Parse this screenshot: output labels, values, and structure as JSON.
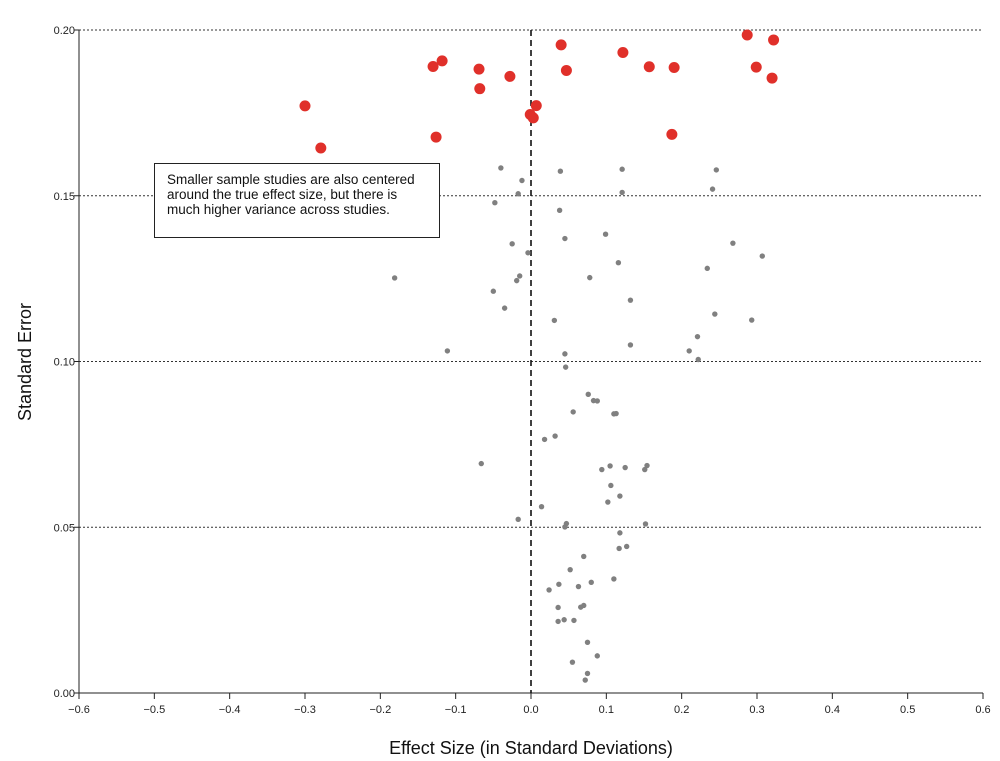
{
  "chart_data": {
    "type": "scatter",
    "xlabel": "Effect Size (in Standard Deviations)",
    "ylabel": "Standard Error",
    "xlim": [
      -0.6,
      0.6
    ],
    "ylim": [
      0,
      0.2
    ],
    "x_ticks": [
      "−0.6",
      "−0.5",
      "−0.4",
      "−0.3",
      "−0.2",
      "−0.1",
      "0.0",
      "0.1",
      "0.2",
      "0.3",
      "0.4",
      "0.5",
      "0.6"
    ],
    "y_ticks": [
      "0.00",
      "0.05",
      "0.10",
      "0.15",
      "0.20"
    ],
    "grid": "horizontal dotted at y ticks",
    "reference_line_x": 0,
    "annotation": "Smaller sample studies are also centered around the true effect size, but there is much higher variance across studies.",
    "colors": {
      "highlight": "#e0302a",
      "regular": "#808080",
      "grid": "#333333"
    },
    "series": [
      {
        "color": "#e0302a",
        "marker": "large",
        "points": [
          [
            0.04,
            0.1955
          ],
          [
            0.287,
            0.1985
          ],
          [
            0.322,
            0.197
          ],
          [
            0.122,
            0.1932
          ],
          [
            -0.118,
            0.1907
          ],
          [
            -0.13,
            0.189
          ],
          [
            -0.069,
            0.1882
          ],
          [
            -0.028,
            0.186
          ],
          [
            0.047,
            0.1878
          ],
          [
            0.157,
            0.1889
          ],
          [
            0.19,
            0.1887
          ],
          [
            0.299,
            0.1888
          ],
          [
            0.32,
            0.1855
          ],
          [
            -0.068,
            0.1823
          ],
          [
            -0.3,
            0.1771
          ],
          [
            0.007,
            0.1772
          ],
          [
            -0.001,
            0.1745
          ],
          [
            0.003,
            0.1735
          ],
          [
            -0.126,
            0.1677
          ],
          [
            -0.279,
            0.1644
          ],
          [
            0.187,
            0.1685
          ]
        ]
      },
      {
        "color": "#808080",
        "marker": "small",
        "points": [
          [
            -0.04,
            0.1584
          ],
          [
            0.039,
            0.1574
          ],
          [
            0.121,
            0.158
          ],
          [
            0.246,
            0.1578
          ],
          [
            -0.012,
            0.1546
          ],
          [
            -0.017,
            0.1506
          ],
          [
            0.121,
            0.151
          ],
          [
            0.241,
            0.152
          ],
          [
            -0.048,
            0.1479
          ],
          [
            0.038,
            0.1456
          ],
          [
            0.099,
            0.1384
          ],
          [
            0.045,
            0.1371
          ],
          [
            -0.025,
            0.1355
          ],
          [
            0.268,
            0.1357
          ],
          [
            -0.004,
            0.1328
          ],
          [
            0.307,
            0.1318
          ],
          [
            0.116,
            0.1298
          ],
          [
            0.234,
            0.1281
          ],
          [
            -0.015,
            0.1258
          ],
          [
            -0.019,
            0.1244
          ],
          [
            0.078,
            0.1253
          ],
          [
            -0.181,
            0.1252
          ],
          [
            -0.05,
            0.1212
          ],
          [
            0.132,
            0.1185
          ],
          [
            -0.035,
            0.1161
          ],
          [
            0.244,
            0.1143
          ],
          [
            0.031,
            0.1124
          ],
          [
            0.293,
            0.1125
          ],
          [
            0.221,
            0.1075
          ],
          [
            0.132,
            0.105
          ],
          [
            -0.111,
            0.1032
          ],
          [
            0.21,
            0.1032
          ],
          [
            0.045,
            0.1023
          ],
          [
            0.222,
            0.1006
          ],
          [
            0.046,
            0.0983
          ],
          [
            0.076,
            0.0901
          ],
          [
            0.083,
            0.0882
          ],
          [
            0.088,
            0.0881
          ],
          [
            0.113,
            0.0843
          ],
          [
            0.11,
            0.0842
          ],
          [
            0.056,
            0.0848
          ],
          [
            0.032,
            0.0775
          ],
          [
            0.018,
            0.0765
          ],
          [
            -0.066,
            0.0692
          ],
          [
            0.105,
            0.0685
          ],
          [
            0.154,
            0.0686
          ],
          [
            0.125,
            0.068
          ],
          [
            0.094,
            0.0674
          ],
          [
            0.151,
            0.0674
          ],
          [
            0.106,
            0.0626
          ],
          [
            0.118,
            0.0594
          ],
          [
            0.102,
            0.0576
          ],
          [
            0.014,
            0.0562
          ],
          [
            -0.017,
            0.0524
          ],
          [
            0.047,
            0.0511
          ],
          [
            0.152,
            0.051
          ],
          [
            0.045,
            0.0501
          ],
          [
            0.118,
            0.0483
          ],
          [
            0.127,
            0.0442
          ],
          [
            0.117,
            0.0436
          ],
          [
            0.07,
            0.0412
          ],
          [
            0.052,
            0.0372
          ],
          [
            0.11,
            0.0344
          ],
          [
            0.08,
            0.0334
          ],
          [
            0.037,
            0.0328
          ],
          [
            0.063,
            0.0321
          ],
          [
            0.024,
            0.0311
          ],
          [
            0.07,
            0.0264
          ],
          [
            0.066,
            0.0259
          ],
          [
            0.036,
            0.0258
          ],
          [
            0.044,
            0.0221
          ],
          [
            0.057,
            0.0219
          ],
          [
            0.036,
            0.0216
          ],
          [
            0.075,
            0.0153
          ],
          [
            0.088,
            0.0112
          ],
          [
            0.055,
            0.0093
          ],
          [
            0.075,
            0.0059
          ],
          [
            0.072,
            0.0039
          ]
        ]
      }
    ]
  }
}
